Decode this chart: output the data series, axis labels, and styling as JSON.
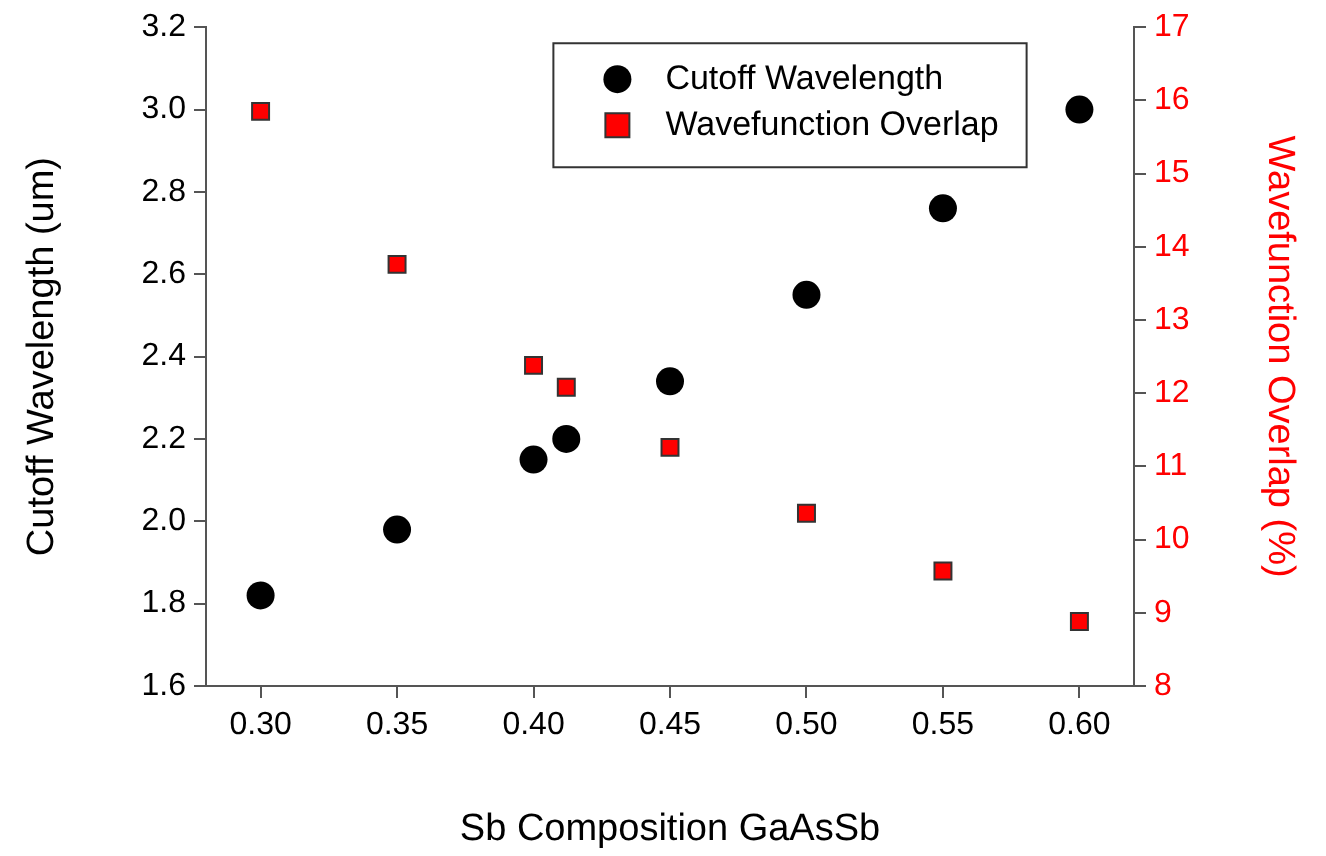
{
  "chart_data": {
    "type": "scatter",
    "xlabel": "Sb Composition GaAsSb",
    "ylabel": "Cutoff Wavelength (um)",
    "y2label": "Wavefunction Overlap (%)",
    "x": [
      0.3,
      0.35,
      0.4,
      0.412,
      0.45,
      0.5,
      0.55,
      0.6
    ],
    "series": [
      {
        "name": "Cutoff Wavelength",
        "color": "#000000",
        "marker": "circle",
        "values": [
          1.82,
          1.98,
          2.15,
          2.2,
          2.34,
          2.55,
          2.76,
          3.0
        ]
      },
      {
        "name": "Wavefunction Overlap",
        "color": "#ff0000",
        "marker": "square",
        "axis": "y2",
        "values": [
          15.85,
          13.76,
          12.38,
          12.08,
          11.26,
          10.36,
          9.57,
          8.88
        ]
      }
    ],
    "xlim": [
      0.28,
      0.62
    ],
    "xticks": [
      {
        "value": 0.3,
        "label": "0.30"
      },
      {
        "value": 0.35,
        "label": "0.35"
      },
      {
        "value": 0.4,
        "label": "0.40"
      },
      {
        "value": 0.45,
        "label": "0.45"
      },
      {
        "value": 0.5,
        "label": "0.50"
      },
      {
        "value": 0.55,
        "label": "0.55"
      },
      {
        "value": 0.6,
        "label": "0.60"
      }
    ],
    "ylim": [
      1.6,
      3.2
    ],
    "yticks": [
      {
        "value": 1.6,
        "label": "1.6"
      },
      {
        "value": 1.8,
        "label": "1.8"
      },
      {
        "value": 2.0,
        "label": "2.0"
      },
      {
        "value": 2.2,
        "label": "2.2"
      },
      {
        "value": 2.4,
        "label": "2.4"
      },
      {
        "value": 2.6,
        "label": "2.6"
      },
      {
        "value": 2.8,
        "label": "2.8"
      },
      {
        "value": 3.0,
        "label": "3.0"
      },
      {
        "value": 3.2,
        "label": "3.2"
      }
    ],
    "y2lim": [
      8,
      17
    ],
    "y2ticks": [
      8,
      9,
      10,
      11,
      12,
      13,
      14,
      15,
      16,
      17
    ],
    "grid": false,
    "legend": "top"
  }
}
